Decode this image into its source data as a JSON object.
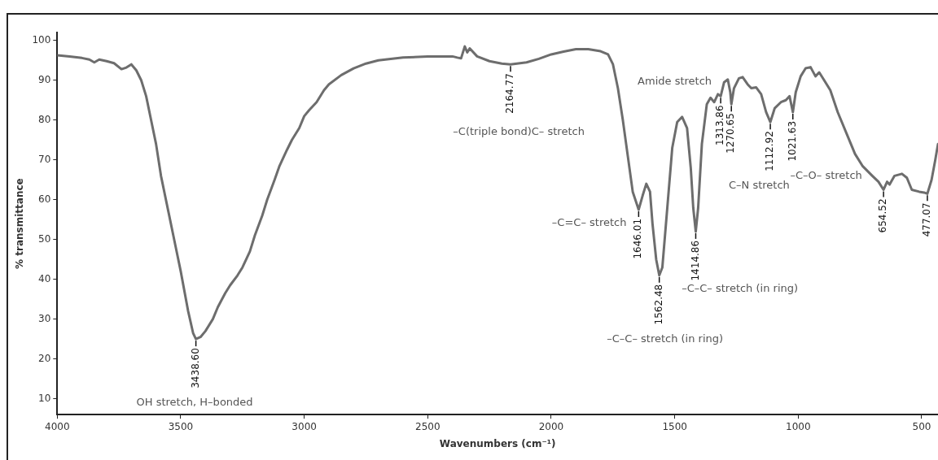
{
  "chart_data": {
    "type": "line",
    "xlabel": "Wavenumbers (cm⁻¹)",
    "ylabel": "% transmittance",
    "xlim": [
      4000,
      434
    ],
    "ylim": [
      6,
      102
    ],
    "xticks": [
      4000,
      3500,
      3000,
      2500,
      2000,
      1500,
      1000,
      500
    ],
    "yticks": [
      10,
      20,
      30,
      40,
      50,
      60,
      70,
      80,
      90,
      100
    ],
    "grid": false,
    "legend": false,
    "marker": "none",
    "line_style": "solid",
    "series": [
      {
        "color": "#6d6d6d",
        "x": [
          4000,
          3950,
          3900,
          3870,
          3850,
          3830,
          3800,
          3770,
          3740,
          3720,
          3700,
          3680,
          3660,
          3640,
          3620,
          3600,
          3580,
          3550,
          3520,
          3500,
          3470,
          3450,
          3438.6,
          3420,
          3400,
          3370,
          3350,
          3320,
          3300,
          3270,
          3250,
          3220,
          3200,
          3170,
          3150,
          3120,
          3100,
          3070,
          3050,
          3020,
          3000,
          2980,
          2950,
          2920,
          2900,
          2850,
          2800,
          2750,
          2700,
          2600,
          2500,
          2400,
          2380,
          2365,
          2350,
          2340,
          2330,
          2300,
          2250,
          2200,
          2164.77,
          2100,
          2050,
          2000,
          1950,
          1900,
          1850,
          1800,
          1770,
          1750,
          1730,
          1710,
          1690,
          1670,
          1646.01,
          1630,
          1615,
          1600,
          1590,
          1575,
          1562.48,
          1550,
          1530,
          1510,
          1490,
          1470,
          1450,
          1435,
          1425,
          1414.86,
          1405,
          1390,
          1370,
          1355,
          1340,
          1325,
          1313.86,
          1300,
          1285,
          1275,
          1270.65,
          1260,
          1240,
          1225,
          1205,
          1190,
          1170,
          1150,
          1130,
          1112.92,
          1095,
          1070,
          1050,
          1035,
          1021.63,
          1010,
          990,
          970,
          950,
          930,
          915,
          900,
          870,
          840,
          800,
          770,
          740,
          700,
          675,
          654.52,
          640,
          630,
          610,
          580,
          560,
          540,
          510,
          490,
          477.07,
          460,
          445,
          434
        ],
        "values": [
          96.3,
          96,
          95.6,
          95.2,
          94.5,
          95.2,
          94.8,
          94.3,
          92.8,
          93.2,
          94,
          92.5,
          90,
          86,
          80,
          74,
          66,
          57,
          48,
          42,
          32,
          26.5,
          25,
          25.5,
          27,
          30,
          33,
          36.5,
          38.5,
          41,
          43,
          47,
          51,
          56,
          60,
          65,
          68.5,
          72.5,
          75,
          78,
          81,
          82.5,
          84.5,
          87.5,
          89,
          91.3,
          93,
          94.2,
          95,
          95.7,
          96,
          96,
          95.7,
          95.5,
          98.5,
          97,
          98,
          96,
          94.8,
          94.2,
          94,
          94.5,
          95.4,
          96.5,
          97.2,
          97.8,
          97.8,
          97.3,
          96.5,
          94,
          88,
          80,
          71,
          62,
          57.5,
          61,
          64,
          62,
          54,
          45,
          41,
          43,
          58,
          73,
          79.5,
          80.8,
          78,
          68,
          58,
          52,
          58,
          74,
          84,
          85.6,
          84.5,
          86.5,
          86,
          89.5,
          90.2,
          87,
          84,
          88,
          90.5,
          90.8,
          89,
          88,
          88.2,
          86.5,
          82,
          79.5,
          83,
          84.5,
          85,
          86,
          82,
          87,
          91,
          93,
          93.3,
          91,
          92,
          90.5,
          87.5,
          82,
          76,
          71.5,
          68.5,
          66,
          64.5,
          62.5,
          64.5,
          63.8,
          66,
          66.5,
          65.5,
          62.5,
          62,
          61.8,
          61.5,
          65,
          70,
          74
        ]
      }
    ],
    "annotations": [
      "OH stretch, H–bonded",
      "–C(triple bond)C– stretch",
      "–C=C– stretch",
      "–C–C– stretch (in ring)",
      "–C–C– stretch (in ring)",
      "Amide stretch",
      "C–N stretch",
      "–C–O– stretch",
      {
        "text": "3438.60",
        "x": 3438.6,
        "y": 25
      },
      {
        "text": "2164.77",
        "x": 2164.77,
        "y": 94
      },
      {
        "text": "1646.01",
        "x": 1646.01,
        "y": 57.5
      },
      {
        "text": "1562.48",
        "x": 1562.48,
        "y": 41
      },
      {
        "text": "1414.86",
        "x": 1414.86,
        "y": 52
      },
      {
        "text": "1313.86",
        "x": 1313.86,
        "y": 86
      },
      {
        "text": "1270.65",
        "x": 1270.65,
        "y": 84
      },
      {
        "text": "1112.92",
        "x": 1112.92,
        "y": 79.5
      },
      {
        "text": "1021.63",
        "x": 1021.63,
        "y": 82
      },
      {
        "text": "654.52",
        "x": 654.52,
        "y": 62.5
      },
      {
        "text": "477.07",
        "x": 477.07,
        "y": 61.5
      }
    ]
  }
}
